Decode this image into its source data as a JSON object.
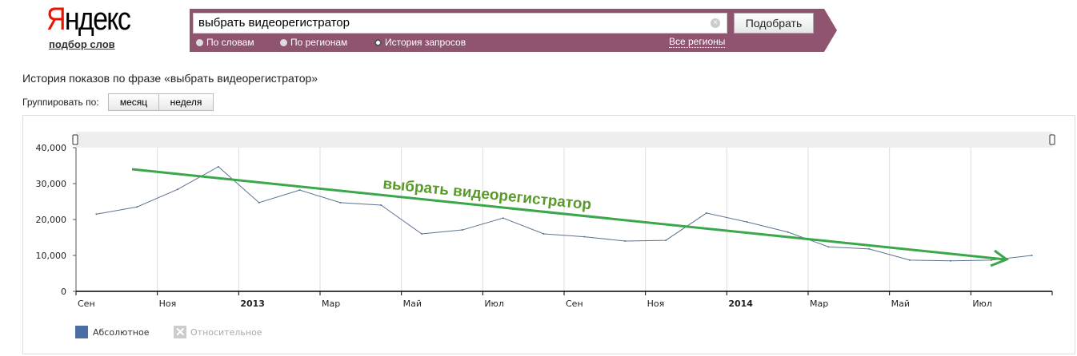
{
  "logo": {
    "first": "Я",
    "rest": "ндекс",
    "subtitle": "подбор слов"
  },
  "search": {
    "value": "выбрать видеорегистратор",
    "submit": "Подобрать",
    "modes": [
      "По словам",
      "По регионам",
      "История запросов"
    ],
    "selected_mode": "История запросов",
    "regions": "Все регионы"
  },
  "page_title": "История показов по фразе «выбрать видеорегистратор»",
  "grouping": {
    "label": "Группировать по:",
    "options": [
      "месяц",
      "неделя"
    ]
  },
  "legend": {
    "absolute": "Абсолютное",
    "relative": "Относительное"
  },
  "annotation": "выбрать видеорегистратор",
  "colors": {
    "panel": "#8f5470",
    "series": "#4a6fa5",
    "annotation": "#3aa84a",
    "annotation_text": "#5a9a2a"
  },
  "chart_data": {
    "type": "line",
    "x": [
      "2012-09",
      "2012-10",
      "2012-11",
      "2012-12",
      "2013-01",
      "2013-02",
      "2013-03",
      "2013-04",
      "2013-05",
      "2013-06",
      "2013-07",
      "2013-08",
      "2013-09",
      "2013-10",
      "2013-11",
      "2013-12",
      "2014-01",
      "2014-02",
      "2014-03",
      "2014-04",
      "2014-05",
      "2014-06",
      "2014-07",
      "2014-08"
    ],
    "series": [
      {
        "name": "Абсолютное",
        "values": [
          21500,
          23500,
          28400,
          34700,
          24700,
          28200,
          24700,
          24000,
          16000,
          17100,
          20400,
          16000,
          15200,
          14000,
          14200,
          21800,
          19300,
          16500,
          12400,
          11800,
          8700,
          8500,
          8700,
          10000
        ]
      }
    ],
    "ylim": [
      0,
      40000
    ],
    "yticks": [
      "0",
      "10,000",
      "20,000",
      "30,000",
      "40,000"
    ],
    "xticks": [
      {
        "label": "Сен",
        "bold": false
      },
      {
        "label": "Ноя",
        "bold": false
      },
      {
        "label": "2013",
        "bold": true
      },
      {
        "label": "Мар",
        "bold": false
      },
      {
        "label": "Май",
        "bold": false
      },
      {
        "label": "Июл",
        "bold": false
      },
      {
        "label": "Сен",
        "bold": false
      },
      {
        "label": "Ноя",
        "bold": false
      },
      {
        "label": "2014",
        "bold": true
      },
      {
        "label": "Мар",
        "bold": false
      },
      {
        "label": "Май",
        "bold": false
      },
      {
        "label": "Июл",
        "bold": false
      }
    ],
    "grid": true
  }
}
